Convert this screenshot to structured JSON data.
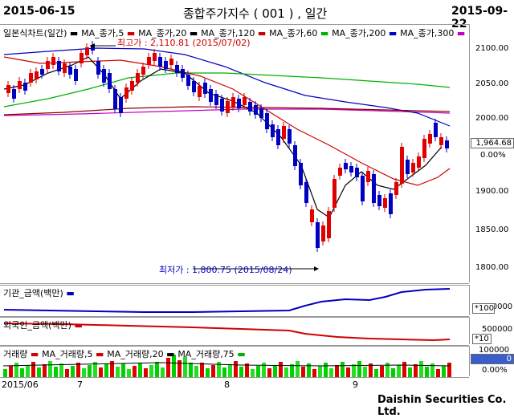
{
  "header": {
    "date_start": "2015-06-15",
    "title": "종합주가지수 ( 001 ) , 일간",
    "date_end": "2015-09-22"
  },
  "main_chart": {
    "legend": [
      {
        "label": "일본식차트(일간)",
        "color": "#000000"
      },
      {
        "label": "MA_종가,5",
        "color": "#d00000"
      },
      {
        "label": "MA_종가,20",
        "color": "#000000"
      },
      {
        "label": "MA_종가,120",
        "color": "#d00000"
      },
      {
        "label": "MA_종가,60",
        "color": "#00b000"
      },
      {
        "label": "MA_종가,200",
        "color": "#0000c0"
      },
      {
        "label": "MA_종가,300",
        "color": "#c000c0"
      }
    ],
    "high_note": "최고가 : 2,110.81 (2015/07/02)",
    "low_note": "최저가 : 1,800.75 (2015/08/24)",
    "y_ticks": [
      "2100.00",
      "2050.00",
      "2000.00",
      "1900.00",
      "1850.00",
      "1800.00"
    ],
    "current_price": "1,964.68",
    "change_pct": "0.00%"
  },
  "inst_panel": {
    "legend": "기관_금액(백만)",
    "color": "#0000c0",
    "axis_value": "100000",
    "unit": "*100"
  },
  "foreign_panel": {
    "legend": "외국인_금액(백만)",
    "color": "#d00000",
    "axis_value": "500000",
    "unit": "*10"
  },
  "volume_panel": {
    "legend": [
      {
        "label": "거래량",
        "color": "#d00000"
      },
      {
        "label": "MA_거래량,5",
        "color": "#d00000"
      },
      {
        "label": "MA_거래량,20",
        "color": "#000000"
      },
      {
        "label": "MA_거래량,75",
        "color": "#00b000"
      }
    ],
    "axis_value": "100000",
    "current_value": "0",
    "change_pct": "0.00%"
  },
  "x_axis": {
    "labels": [
      "2015/06",
      "7",
      "8",
      "9"
    ]
  },
  "footer": {
    "company": "Daishin Securities Co. Ltd."
  }
}
